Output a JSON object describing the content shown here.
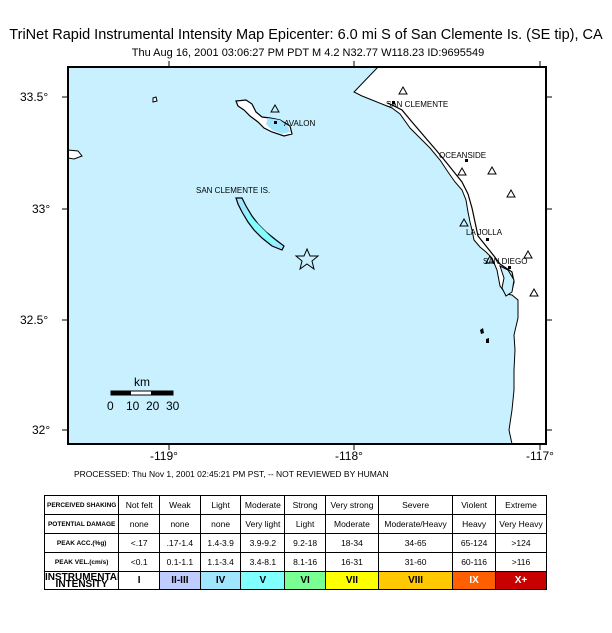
{
  "header": {
    "title": "TriNet Rapid Instrumental Intensity Map Epicenter: 6.0 mi S of San Clemente Is. (SE tip), CA",
    "subtitle": "Thu Aug 16, 2001 03:06:27 PM PDT   M 4.2   N32.77 W118.23    ID:9695549"
  },
  "map": {
    "ocean_color": "#c8f0ff",
    "lat_labels": [
      "33.5°",
      "33°",
      "32.5°",
      "32°"
    ],
    "lon_labels": [
      "-119°",
      "-118°",
      "-117°"
    ],
    "lon_corner_label": "-117°",
    "places": [
      "SAN CLEMENTE",
      "AVALON",
      "OCEANSIDE",
      "SAN CLEMENTE IS.",
      "LA JOLLA",
      "SAN DIEGO"
    ],
    "epicenter": {
      "lat": 32.77,
      "lon": -118.23,
      "symbol": "star-icon"
    },
    "scale_bar": {
      "unit": "km",
      "ticks": [
        "0",
        "10",
        "20",
        "30"
      ]
    }
  },
  "processed_note": "PROCESSED: Thu Nov 1, 2001 02:45:21 PM PST, -- NOT REVIEWED BY HUMAN",
  "legend": {
    "rows": [
      {
        "head": "PERCEIVED SHAKING",
        "cells": [
          "Not felt",
          "Weak",
          "Light",
          "Moderate",
          "Strong",
          "Very strong",
          "Severe",
          "Violent",
          "Extreme"
        ]
      },
      {
        "head": "POTENTIAL DAMAGE",
        "cells": [
          "none",
          "none",
          "none",
          "Very light",
          "Light",
          "Moderate",
          "Moderate/Heavy",
          "Heavy",
          "Very Heavy"
        ]
      },
      {
        "head": "PEAK ACC.(%g)",
        "cells": [
          "<.17",
          ".17-1.4",
          "1.4-3.9",
          "3.9-9.2",
          "9.2-18",
          "18-34",
          "34-65",
          "65-124",
          ">124"
        ]
      },
      {
        "head": "PEAK VEL.(cm/s)",
        "cells": [
          "<0.1",
          "0.1-1.1",
          "1.1-3.4",
          "3.4-8.1",
          "8.1-16",
          "16-31",
          "31-60",
          "60-116",
          ">116"
        ]
      }
    ],
    "intensity_head": "INSTRUMENTAL INTENSITY",
    "intensity": [
      "I",
      "II-III",
      "IV",
      "V",
      "VI",
      "VII",
      "VIII",
      "IX",
      "X+"
    ],
    "intensity_colors": [
      "#ffffff",
      "#bfccff",
      "#a0e6ff",
      "#80ffff",
      "#7aff93",
      "#ffff00",
      "#ffc800",
      "#ff5f00",
      "#c80000"
    ]
  }
}
